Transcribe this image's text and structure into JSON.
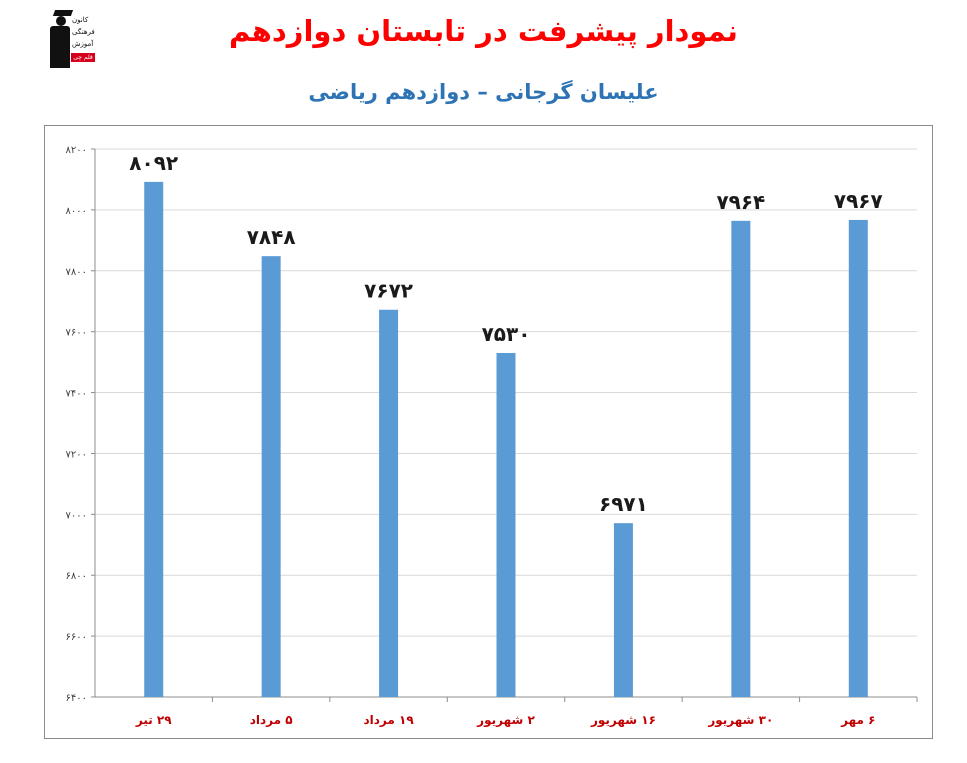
{
  "header": {
    "title": "نمودار پیشرفت در تابستان دوازدهم",
    "subtitle": "علیسان گرجانی – دوازدهم ریاضی",
    "logo": {
      "line1": "کانون",
      "line2": "فرهنگی",
      "line3": "آموزش",
      "tag": "قلم چی"
    }
  },
  "colors": {
    "title": "#ff0000",
    "subtitle": "#2e74b5",
    "bar": "#5b9bd5",
    "category_label": "#c00000",
    "value_label": "#1a1a1a",
    "grid": "#d9d9d9"
  },
  "chart_data": {
    "type": "bar",
    "categories": [
      "۲۹ تیر",
      "۵ مرداد",
      "۱۹ مرداد",
      "۲ شهریور",
      "۱۶ شهریور",
      "۳۰ شهریور",
      "۶ مهر"
    ],
    "values": [
      8092,
      7848,
      7672,
      7530,
      6971,
      7964,
      7967
    ],
    "value_labels": [
      "۸۰۹۲",
      "۷۸۴۸",
      "۷۶۷۲",
      "۷۵۳۰",
      "۶۹۷۱",
      "۷۹۶۴",
      "۷۹۶۷"
    ],
    "ylim": [
      6400,
      8200
    ],
    "yticks": [
      6400,
      6600,
      6800,
      7000,
      7200,
      7400,
      7600,
      7800,
      8000,
      8200
    ],
    "ytick_labels": [
      "۶۴۰۰",
      "۶۶۰۰",
      "۶۸۰۰",
      "۷۰۰۰",
      "۷۲۰۰",
      "۷۴۰۰",
      "۷۶۰۰",
      "۷۸۰۰",
      "۸۰۰۰",
      "۸۲۰۰"
    ],
    "grid": true,
    "legend": false
  }
}
